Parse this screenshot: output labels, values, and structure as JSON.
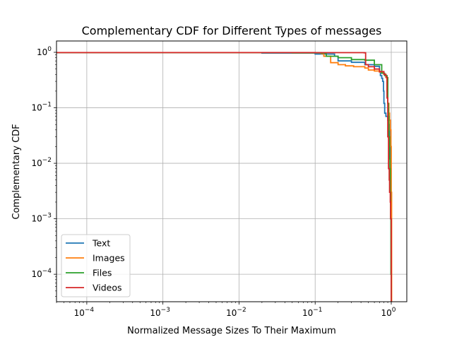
{
  "chart_data": {
    "type": "line",
    "title": "Complementary CDF for Different Types of messages",
    "xlabel": "Normalized Message Sizes To Their Maximum",
    "ylabel": "Complementary CDF",
    "xscale": "log",
    "yscale": "log",
    "xlim": [
      4e-05,
      1.6
    ],
    "ylim": [
      3.2e-05,
      1.6
    ],
    "x_ticks": [
      0.0001,
      0.001,
      0.01,
      0.1,
      1
    ],
    "x_tick_labels": [
      {
        "base": "10",
        "exp": "−4"
      },
      {
        "base": "10",
        "exp": "−3"
      },
      {
        "base": "10",
        "exp": "−2"
      },
      {
        "base": "10",
        "exp": "−1"
      },
      {
        "base": "10",
        "exp": "0"
      }
    ],
    "y_ticks": [
      0.0001,
      0.001,
      0.01,
      0.1,
      1
    ],
    "y_tick_labels": [
      {
        "base": "10",
        "exp": "−4"
      },
      {
        "base": "10",
        "exp": "−3"
      },
      {
        "base": "10",
        "exp": "−2"
      },
      {
        "base": "10",
        "exp": "−1"
      },
      {
        "base": "10",
        "exp": "0"
      }
    ],
    "grid": true,
    "legend_position": "lower-left",
    "series": [
      {
        "name": "Text",
        "color": "#1f77b4",
        "x": [
          4e-05,
          0.02,
          0.1,
          0.18,
          0.2,
          0.3,
          0.45,
          0.6,
          0.7,
          0.72,
          0.75,
          0.77,
          0.79,
          0.8,
          0.82,
          0.85,
          0.9,
          0.93,
          0.95,
          0.97,
          0.98,
          0.99,
          1.0
        ],
        "y": [
          0.985,
          0.97,
          0.93,
          0.85,
          0.7,
          0.66,
          0.6,
          0.56,
          0.45,
          0.38,
          0.34,
          0.3,
          0.2,
          0.12,
          0.08,
          0.07,
          0.06,
          0.05,
          0.03,
          0.02,
          0.008,
          0.002,
          3e-05
        ]
      },
      {
        "name": "Images",
        "color": "#ff7f0e",
        "x": [
          4e-05,
          0.05,
          0.12,
          0.13,
          0.16,
          0.2,
          0.25,
          0.32,
          0.45,
          0.5,
          0.6,
          0.7,
          0.8,
          0.85,
          0.88,
          0.9,
          0.93,
          0.95,
          0.97,
          0.99,
          1.0,
          1.01
        ],
        "y": [
          0.99,
          0.98,
          0.95,
          0.85,
          0.65,
          0.6,
          0.57,
          0.55,
          0.52,
          0.48,
          0.46,
          0.44,
          0.4,
          0.35,
          0.2,
          0.12,
          0.08,
          0.06,
          0.04,
          0.02,
          0.003,
          3e-05
        ]
      },
      {
        "name": "Files",
        "color": "#2ca02c",
        "x": [
          4e-05,
          0.05,
          0.12,
          0.14,
          0.2,
          0.3,
          0.45,
          0.6,
          0.75,
          0.82,
          0.88,
          0.9,
          0.92,
          0.93,
          0.95,
          0.96,
          0.97,
          0.98,
          0.99,
          1.0
        ],
        "y": [
          0.99,
          0.98,
          0.97,
          0.85,
          0.8,
          0.74,
          0.72,
          0.6,
          0.42,
          0.38,
          0.35,
          0.12,
          0.07,
          0.03,
          0.012,
          0.008,
          0.003,
          0.001,
          0.0001,
          3e-05
        ]
      },
      {
        "name": "Videos",
        "color": "#d62728",
        "x": [
          4e-05,
          0.1,
          0.44,
          0.46,
          0.5,
          0.6,
          0.7,
          0.8,
          0.85,
          0.88,
          0.9,
          0.92,
          0.94,
          0.95,
          0.97,
          0.98,
          1.0
        ],
        "y": [
          0.99,
          0.985,
          0.98,
          0.6,
          0.55,
          0.5,
          0.45,
          0.4,
          0.36,
          0.15,
          0.03,
          0.008,
          0.005,
          0.003,
          0.002,
          0.001,
          3e-05
        ]
      }
    ]
  }
}
